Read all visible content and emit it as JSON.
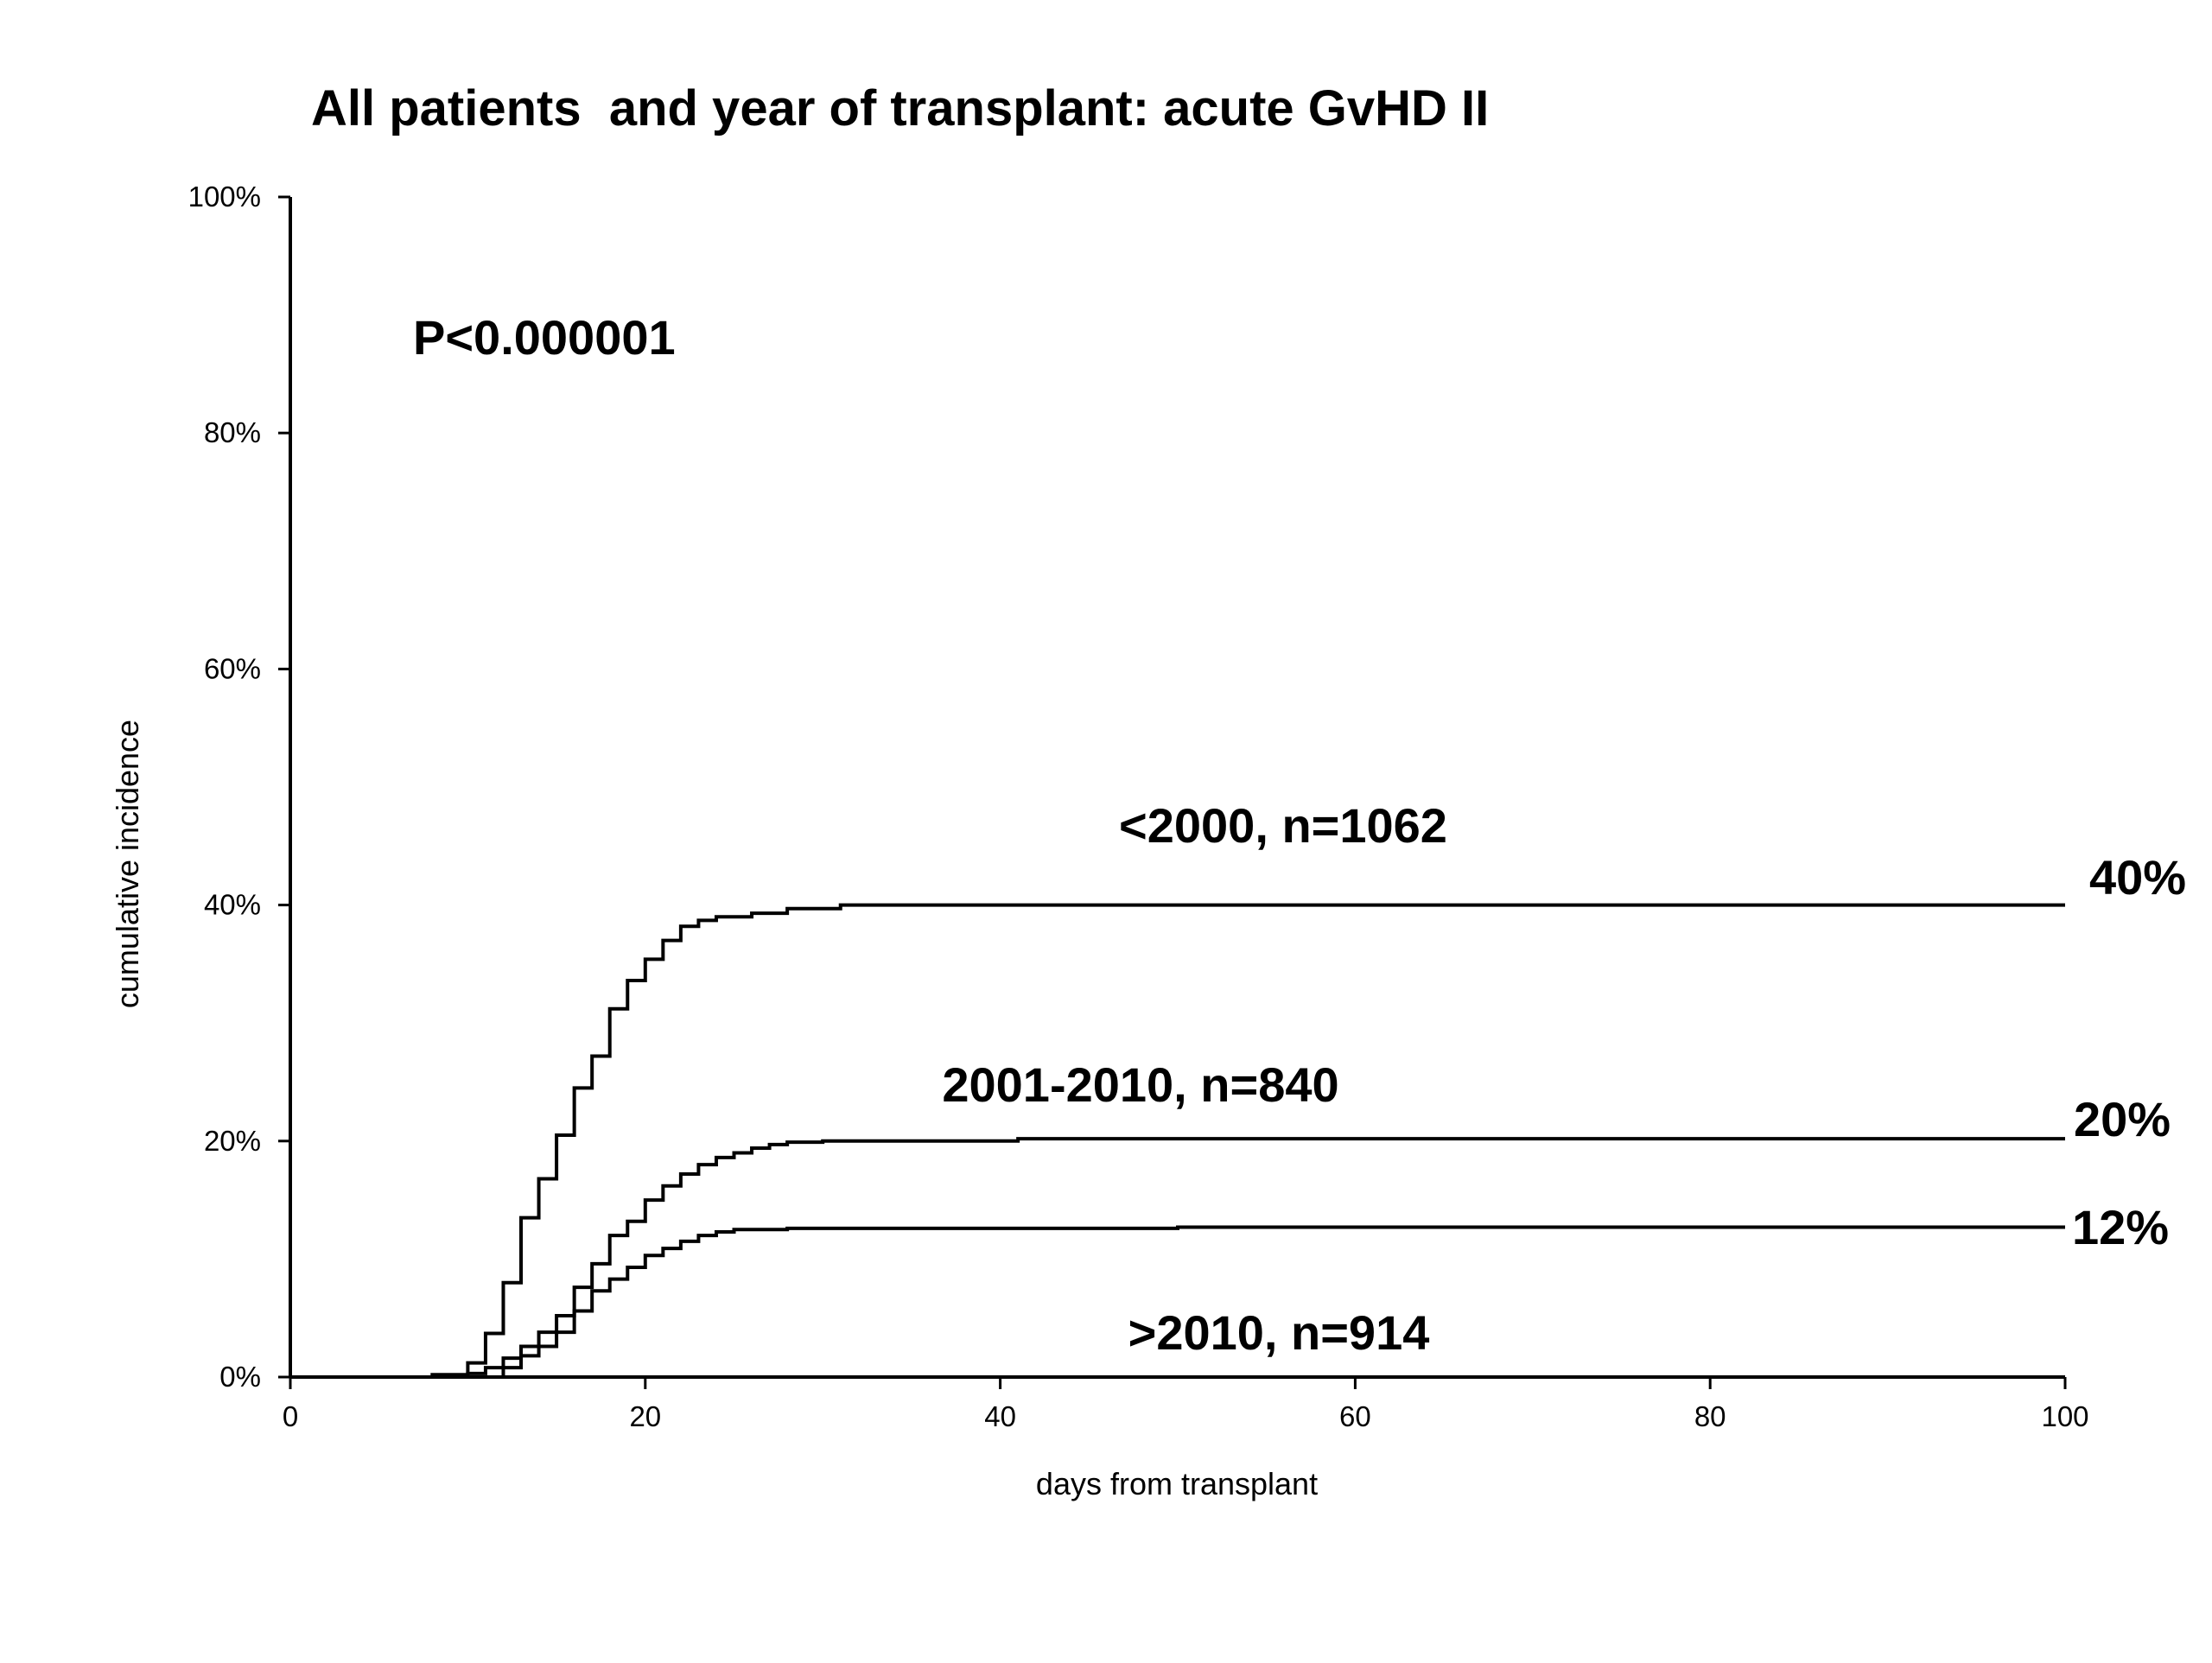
{
  "chart_data": {
    "type": "line",
    "title": "All patients  and year of transplant: acute GvHD II",
    "xlabel": "days from transplant",
    "ylabel": "cumulative incidence",
    "xlim": [
      0,
      100
    ],
    "ylim": [
      0,
      100
    ],
    "x_ticks": [
      0,
      20,
      40,
      60,
      80,
      100
    ],
    "x_tick_labels": [
      "0",
      "20",
      "40",
      "60",
      "80",
      "100"
    ],
    "y_ticks": [
      0,
      20,
      40,
      60,
      80,
      100
    ],
    "y_tick_labels": [
      "0%",
      "20%",
      "40%",
      "60%",
      "80%",
      "100%"
    ],
    "grid": false,
    "line_color": "#000000",
    "annotations": {
      "p_value": "P<0.000001"
    },
    "series": [
      {
        "name": "<2000, n=1062",
        "end_label": "40%",
        "step": true,
        "x": [
          0,
          8,
          10,
          11,
          12,
          13,
          14,
          15,
          16,
          17,
          18,
          19,
          20,
          21,
          22,
          23,
          24,
          26,
          28,
          31,
          100
        ],
        "y": [
          0,
          0.2,
          1.2,
          3.7,
          8,
          13.5,
          16.8,
          20.5,
          24.5,
          27.2,
          31.2,
          33.6,
          35.4,
          37,
          38.2,
          38.7,
          39,
          39.3,
          39.7,
          40,
          40
        ]
      },
      {
        "name": "2001-2010, n=840",
        "end_label": "20%",
        "step": true,
        "x": [
          0,
          10,
          11,
          12,
          13,
          14,
          15,
          16,
          17,
          18,
          19,
          20,
          21,
          22,
          23,
          24,
          25,
          26,
          27,
          28,
          30,
          41,
          100
        ],
        "y": [
          0,
          0.3,
          0.8,
          1.6,
          2.6,
          3.8,
          5.2,
          7.6,
          9.6,
          12,
          13.2,
          15,
          16.2,
          17.2,
          18,
          18.6,
          19,
          19.4,
          19.7,
          19.9,
          20,
          20.2,
          20.2
        ]
      },
      {
        "name": ">2010, n=914",
        "end_label": "12%",
        "step": true,
        "x": [
          0,
          12,
          13,
          14,
          15,
          16,
          17,
          18,
          19,
          20,
          21,
          22,
          23,
          24,
          25,
          28,
          50,
          100
        ],
        "y": [
          0,
          0.8,
          1.8,
          2.6,
          3.8,
          5.6,
          7.3,
          8.3,
          9.3,
          10.3,
          10.9,
          11.5,
          12,
          12.3,
          12.5,
          12.6,
          12.7,
          12.7
        ]
      }
    ]
  }
}
